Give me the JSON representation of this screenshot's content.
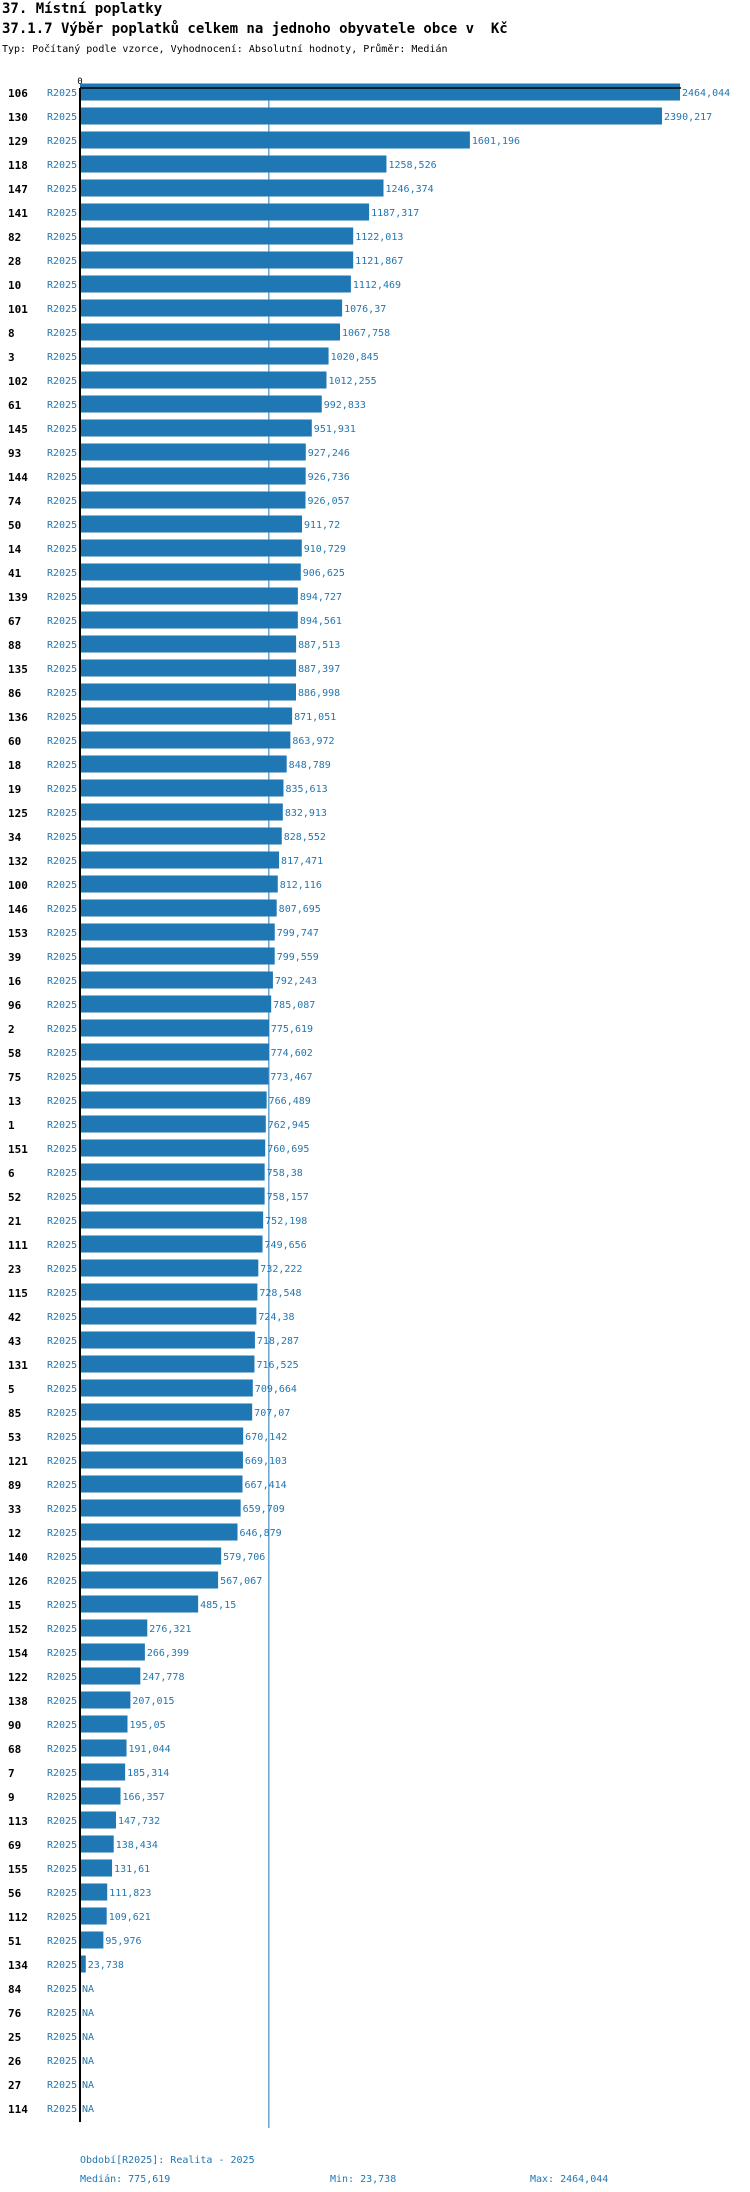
{
  "header": {
    "title": "37. Místní poplatky",
    "subtitle": "37.1.7 Výběr poplatků celkem na jednoho obyvatele obce v  Kč",
    "description": "Typ: Počítaný podle vzorce, Vyhodnocení: Absolutní hodnoty, Průměr: Medián"
  },
  "colors": {
    "bar": "#1f77b4",
    "label": "#1f77b4",
    "axis": "#000000",
    "median_line": "#1f77b4"
  },
  "chart_data": {
    "type": "bar",
    "orientation": "horizontal",
    "series_label": "R2025",
    "axis_zero_label": "0",
    "xlim": [
      0,
      2464.044
    ],
    "median": 775.619,
    "categories": [
      "106",
      "130",
      "129",
      "118",
      "147",
      "141",
      "82",
      "28",
      "10",
      "101",
      "8",
      "3",
      "102",
      "61",
      "145",
      "93",
      "144",
      "74",
      "50",
      "14",
      "41",
      "139",
      "67",
      "88",
      "135",
      "86",
      "136",
      "60",
      "18",
      "19",
      "125",
      "34",
      "132",
      "100",
      "146",
      "153",
      "39",
      "16",
      "96",
      "2",
      "58",
      "75",
      "13",
      "1",
      "151",
      "6",
      "52",
      "21",
      "111",
      "23",
      "115",
      "42",
      "43",
      "131",
      "5",
      "85",
      "53",
      "121",
      "89",
      "33",
      "12",
      "140",
      "126",
      "15",
      "152",
      "154",
      "122",
      "138",
      "90",
      "68",
      "7",
      "9",
      "113",
      "69",
      "155",
      "56",
      "112",
      "51",
      "134",
      "84",
      "76",
      "25",
      "26",
      "27",
      "114"
    ],
    "values": [
      2464.044,
      2390.217,
      1601.196,
      1258.526,
      1246.374,
      1187.317,
      1122.013,
      1121.867,
      1112.469,
      1076.37,
      1067.758,
      1020.845,
      1012.255,
      992.833,
      951.931,
      927.246,
      926.736,
      926.057,
      911.72,
      910.729,
      906.625,
      894.727,
      894.561,
      887.513,
      887.397,
      886.998,
      871.051,
      863.972,
      848.789,
      835.613,
      832.913,
      828.552,
      817.471,
      812.116,
      807.695,
      799.747,
      799.559,
      792.243,
      785.087,
      775.619,
      774.602,
      773.467,
      766.489,
      762.945,
      760.695,
      758.38,
      758.157,
      752.198,
      749.656,
      732.222,
      728.548,
      724.38,
      718.287,
      716.525,
      709.664,
      707.07,
      670.142,
      669.103,
      667.414,
      659.709,
      646.879,
      579.706,
      567.067,
      485.15,
      276.321,
      266.399,
      247.778,
      207.015,
      195.05,
      191.044,
      185.314,
      166.357,
      147.732,
      138.434,
      131.61,
      111.823,
      109.621,
      95.976,
      23.738,
      null,
      null,
      null,
      null,
      null,
      null
    ],
    "value_labels": [
      "2464,044",
      "2390,217",
      "1601,196",
      "1258,526",
      "1246,374",
      "1187,317",
      "1122,013",
      "1121,867",
      "1112,469",
      "1076,37",
      "1067,758",
      "1020,845",
      "1012,255",
      "992,833",
      "951,931",
      "927,246",
      "926,736",
      "926,057",
      "911,72",
      "910,729",
      "906,625",
      "894,727",
      "894,561",
      "887,513",
      "887,397",
      "886,998",
      "871,051",
      "863,972",
      "848,789",
      "835,613",
      "832,913",
      "828,552",
      "817,471",
      "812,116",
      "807,695",
      "799,747",
      "799,559",
      "792,243",
      "785,087",
      "775,619",
      "774,602",
      "773,467",
      "766,489",
      "762,945",
      "760,695",
      "758,38",
      "758,157",
      "752,198",
      "749,656",
      "732,222",
      "728,548",
      "724,38",
      "718,287",
      "716,525",
      "709,664",
      "707,07",
      "670,142",
      "669,103",
      "667,414",
      "659,709",
      "646,879",
      "579,706",
      "567,067",
      "485,15",
      "276,321",
      "266,399",
      "247,778",
      "207,015",
      "195,05",
      "191,044",
      "185,314",
      "166,357",
      "147,732",
      "138,434",
      "131,61",
      "111,823",
      "109,621",
      "95,976",
      "23,738",
      "NA",
      "NA",
      "NA",
      "NA",
      "NA",
      "NA"
    ]
  },
  "footer": {
    "period": "Období[R2025]: Realita - 2025",
    "median": "Medián: 775,619",
    "min": "Min: 23,738",
    "max": "Max: 2464,044"
  }
}
